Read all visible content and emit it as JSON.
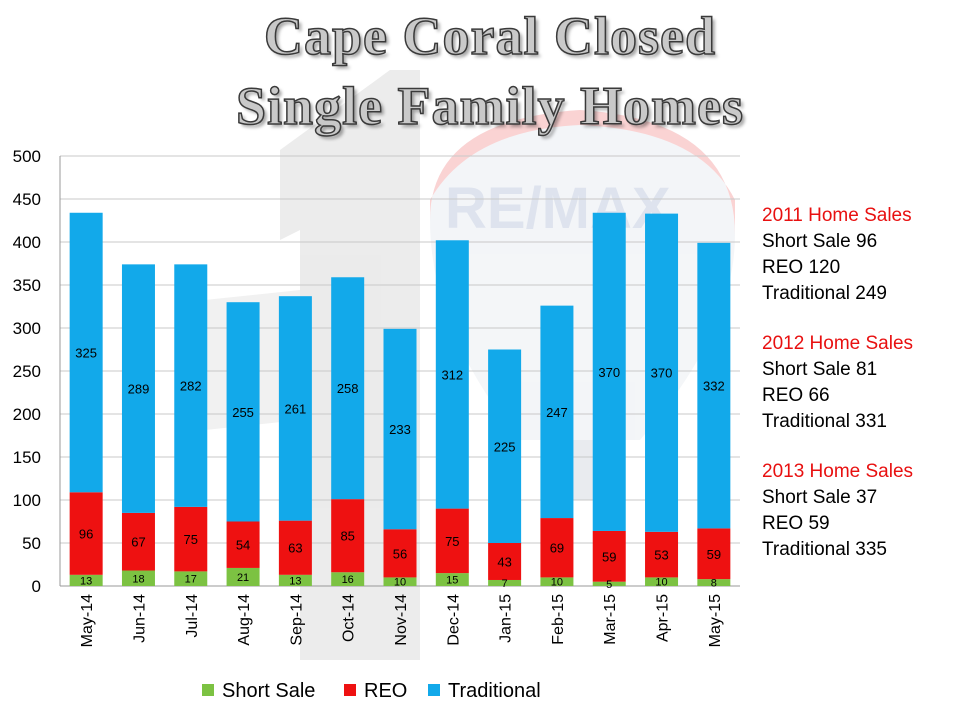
{
  "title": {
    "line1": "Cape Coral Closed",
    "line2": "Single Family Homes"
  },
  "background_art": {
    "logo_text": "RE/MAX"
  },
  "colors": {
    "short_sale": "#7cc242",
    "reo": "#ee1111",
    "traditional": "#12a9ea",
    "grid": "#c8c8c8"
  },
  "chart_data": {
    "type": "bar",
    "stacked": true,
    "categories": [
      "May-14",
      "Jun-14",
      "Jul-14",
      "Aug-14",
      "Sep-14",
      "Oct-14",
      "Nov-14",
      "Dec-14",
      "Jan-15",
      "Feb-15",
      "Mar-15",
      "Apr-15",
      "May-15"
    ],
    "series": [
      {
        "name": "Short Sale",
        "values": [
          13,
          18,
          17,
          21,
          13,
          16,
          10,
          15,
          7,
          10,
          5,
          10,
          8
        ]
      },
      {
        "name": "REO",
        "values": [
          96,
          67,
          75,
          54,
          63,
          85,
          56,
          75,
          43,
          69,
          59,
          53,
          59
        ]
      },
      {
        "name": "Traditional",
        "values": [
          325,
          289,
          282,
          255,
          261,
          258,
          233,
          312,
          225,
          247,
          370,
          370,
          332
        ]
      }
    ],
    "ylim": [
      0,
      500
    ],
    "yticks": [
      0,
      50,
      100,
      150,
      200,
      250,
      300,
      350,
      400,
      450,
      500
    ],
    "grid": true,
    "legend_position": "bottom"
  },
  "sidebar": [
    {
      "header": "2011 Home  Sales",
      "lines": [
        "Short Sale 96",
        "REO 120",
        "Traditional  249"
      ]
    },
    {
      "header": "2012 Home  Sales",
      "lines": [
        "Short Sale 81",
        "REO 66",
        "Traditional 331"
      ]
    },
    {
      "header": "2013 Home  Sales",
      "lines": [
        "Short Sale 37",
        "REO 59",
        "Traditional 335"
      ]
    }
  ]
}
